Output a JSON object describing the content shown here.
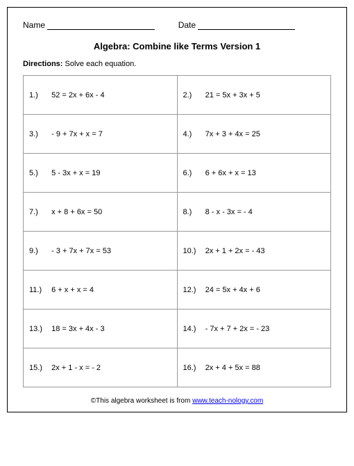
{
  "header": {
    "name_label": "Name",
    "date_label": "Date"
  },
  "title": "Algebra: Combine like Terms Version 1",
  "directions_label": "Directions:",
  "directions_text": " Solve each equation.",
  "problems": [
    {
      "n": "1.)",
      "eq": "52 = 2x + 6x - 4"
    },
    {
      "n": "2.)",
      "eq": "21 = 5x + 3x + 5"
    },
    {
      "n": "3.)",
      "eq": "- 9 + 7x + x = 7"
    },
    {
      "n": "4.)",
      "eq": "7x + 3 + 4x = 25"
    },
    {
      "n": "5.)",
      "eq": "5 - 3x + x = 19"
    },
    {
      "n": "6.)",
      "eq": "6 + 6x + x = 13"
    },
    {
      "n": "7.)",
      "eq": "x + 8 + 6x = 50"
    },
    {
      "n": "8.)",
      "eq": "8 - x - 3x = - 4"
    },
    {
      "n": "9.)",
      "eq": "- 3 + 7x + 7x = 53"
    },
    {
      "n": "10.)",
      "eq": "2x + 1 + 2x = - 43"
    },
    {
      "n": "11.)",
      "eq": "6 + x + x = 4"
    },
    {
      "n": "12.)",
      "eq": "24 = 5x + 4x + 6"
    },
    {
      "n": "13.)",
      "eq": "18 = 3x + 4x - 3"
    },
    {
      "n": "14.)",
      "eq": "- 7x + 7 + 2x = - 23"
    },
    {
      "n": "15.)",
      "eq": "2x + 1 - x = - 2"
    },
    {
      "n": "16.)",
      "eq": "2x + 4 + 5x = 88"
    }
  ],
  "footer": {
    "prefix": "©This algebra worksheet is from ",
    "link_text": "www.teach-nology.com"
  }
}
